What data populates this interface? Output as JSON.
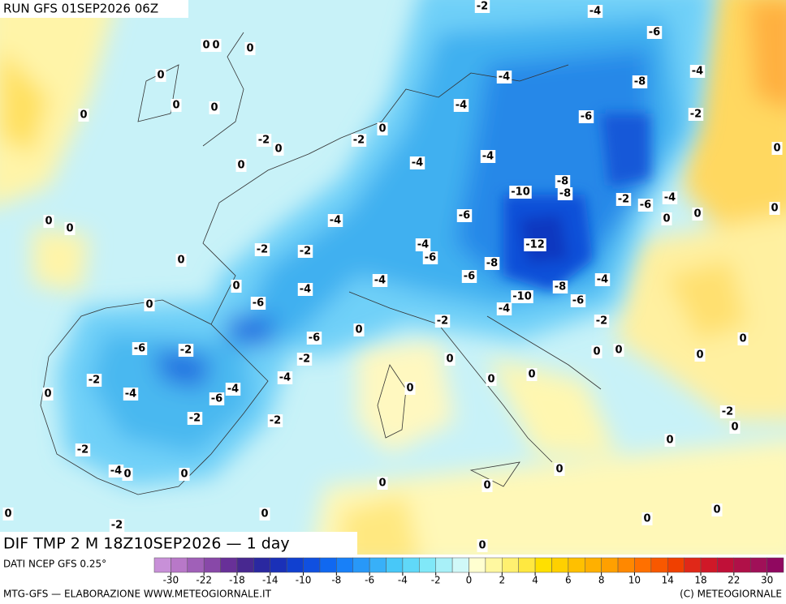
{
  "header": {
    "title": "RUN GFS 01SEP2026 06Z"
  },
  "map": {
    "caption": "DIF TMP 2 M 18Z10SEP2026 — 1 day",
    "contour_labels": [
      -2,
      -4,
      -6,
      0,
      0,
      0,
      0,
      -4,
      -8,
      -4,
      0,
      0,
      0,
      -4,
      -6,
      -2,
      0,
      -2,
      0,
      -2,
      0,
      0,
      -4,
      -4,
      -8,
      -10,
      -8,
      -2,
      -6,
      -4,
      0,
      0,
      -4,
      -6,
      0,
      0,
      0,
      -4,
      -12,
      -2,
      -2,
      0,
      -6,
      -8,
      0,
      -4,
      -6,
      -4,
      -8,
      -4,
      -6,
      0,
      -10,
      -6,
      -4,
      -2,
      -2,
      0,
      -6,
      -6,
      -2,
      -2,
      0,
      0,
      0,
      0,
      0,
      -4,
      -2,
      0,
      0,
      0,
      -4,
      -6,
      -4,
      0,
      -2,
      -2,
      -2,
      0,
      0,
      -2,
      -4,
      0,
      0,
      0,
      0,
      0,
      0,
      0,
      -2,
      0,
      0,
      0
    ]
  },
  "colorbar": {
    "ticks": [
      -30,
      -22,
      -18,
      -14,
      -10,
      -8,
      -6,
      -4,
      -2,
      0,
      2,
      4,
      6,
      8,
      10,
      14,
      18,
      22,
      30
    ],
    "colors": [
      "#c890d8",
      "#b878c8",
      "#a060b8",
      "#8848a8",
      "#683098",
      "#482890",
      "#2a28a0",
      "#1a30b8",
      "#1040d0",
      "#1050e0",
      "#1068f0",
      "#1880f8",
      "#2898f8",
      "#38b0f8",
      "#48c8f8",
      "#60d8f8",
      "#80e8f8",
      "#a8f0f8",
      "#d0f8f8",
      "#ffffd0",
      "#fff8a0",
      "#fff070",
      "#ffe840",
      "#ffe000",
      "#ffd000",
      "#ffc000",
      "#ffb000",
      "#ffa000",
      "#ff8800",
      "#ff7000",
      "#f85800",
      "#f04000",
      "#e02818",
      "#d01828",
      "#c01038",
      "#b01048",
      "#a01058",
      "#900860"
    ]
  },
  "footer": {
    "source": "DATI NCEP GFS 0.25°",
    "credit": "MTG-GFS — ELABORAZIONE WWW.METEOGIORNALE.IT",
    "copyright": "(C) METEOGIORNALE"
  }
}
